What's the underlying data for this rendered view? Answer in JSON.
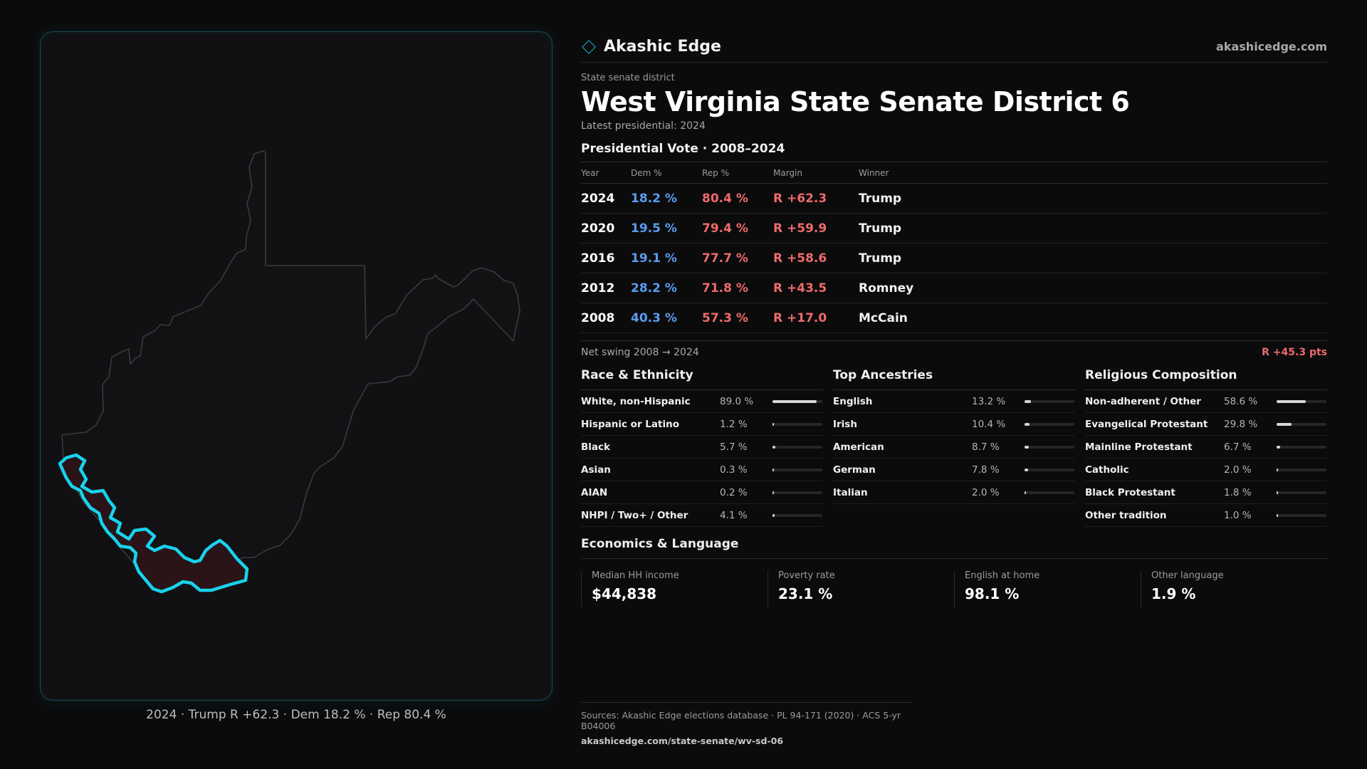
{
  "brand": {
    "name": "Akashic Edge",
    "url": "akashicedge.com",
    "accent": "#17b8d0"
  },
  "district": {
    "kicker": "State senate district",
    "title": "West Virginia State Senate District 6",
    "latest": "Latest presidential: 2024"
  },
  "presidential": {
    "title": "Presidential Vote · 2008–2024",
    "headers": [
      "Year",
      "Dem %",
      "Rep %",
      "Margin",
      "Winner"
    ],
    "rows": [
      {
        "year": "2024",
        "dem": "18.2 %",
        "rep": "80.4 %",
        "margin": "R +62.3",
        "winner": "Trump"
      },
      {
        "year": "2020",
        "dem": "19.5 %",
        "rep": "79.4 %",
        "margin": "R +59.9",
        "winner": "Trump"
      },
      {
        "year": "2016",
        "dem": "19.1 %",
        "rep": "77.7 %",
        "margin": "R +58.6",
        "winner": "Trump"
      },
      {
        "year": "2012",
        "dem": "28.2 %",
        "rep": "71.8 %",
        "margin": "R +43.5",
        "winner": "Romney"
      },
      {
        "year": "2008",
        "dem": "40.3 %",
        "rep": "57.3 %",
        "margin": "R +17.0",
        "winner": "McCain"
      }
    ],
    "swing_label": "Net swing 2008 → 2024",
    "swing_value": "R +45.3 pts"
  },
  "race": {
    "title": "Race & Ethnicity",
    "items": [
      {
        "label": "White, non-Hispanic",
        "pct": "89.0 %",
        "value": 89.0
      },
      {
        "label": "Hispanic or Latino",
        "pct": "1.2 %",
        "value": 1.2
      },
      {
        "label": "Black",
        "pct": "5.7 %",
        "value": 5.7
      },
      {
        "label": "Asian",
        "pct": "0.3 %",
        "value": 0.3
      },
      {
        "label": "AIAN",
        "pct": "0.2 %",
        "value": 0.2
      },
      {
        "label": "NHPI / Two+ / Other",
        "pct": "4.1 %",
        "value": 4.1
      }
    ]
  },
  "ancestry": {
    "title": "Top Ancestries",
    "items": [
      {
        "label": "English",
        "pct": "13.2 %",
        "value": 13.2
      },
      {
        "label": "Irish",
        "pct": "10.4 %",
        "value": 10.4
      },
      {
        "label": "American",
        "pct": "8.7 %",
        "value": 8.7
      },
      {
        "label": "German",
        "pct": "7.8 %",
        "value": 7.8
      },
      {
        "label": "Italian",
        "pct": "2.0 %",
        "value": 2.0
      }
    ]
  },
  "religion": {
    "title": "Religious Composition",
    "items": [
      {
        "label": "Non-adherent / Other",
        "pct": "58.6 %",
        "value": 58.6
      },
      {
        "label": "Evangelical Protestant",
        "pct": "29.8 %",
        "value": 29.8
      },
      {
        "label": "Mainline Protestant",
        "pct": "6.7 %",
        "value": 6.7
      },
      {
        "label": "Catholic",
        "pct": "2.0 %",
        "value": 2.0
      },
      {
        "label": "Black Protestant",
        "pct": "1.8 %",
        "value": 1.8
      },
      {
        "label": "Other tradition",
        "pct": "1.0 %",
        "value": 1.0
      }
    ]
  },
  "economics": {
    "title": "Economics & Language",
    "items": [
      {
        "label": "Median HH income",
        "value": "$44,838"
      },
      {
        "label": "Poverty rate",
        "value": "23.1 %"
      },
      {
        "label": "English at home",
        "value": "98.1 %"
      },
      {
        "label": "Other language",
        "value": "1.9 %"
      }
    ]
  },
  "map": {
    "caption": "2024 · Trump R +62.3 · Dem 18.2 % · Rep 80.4 %",
    "highlight_color": "#18d2ec",
    "highlight_fill": "#2a1418"
  },
  "sources": {
    "text": "Sources: Akashic Edge elections database · PL 94-171 (2020) · ACS 5-yr B04006",
    "url": "akashicedge.com/state-senate/wv-sd-06"
  }
}
